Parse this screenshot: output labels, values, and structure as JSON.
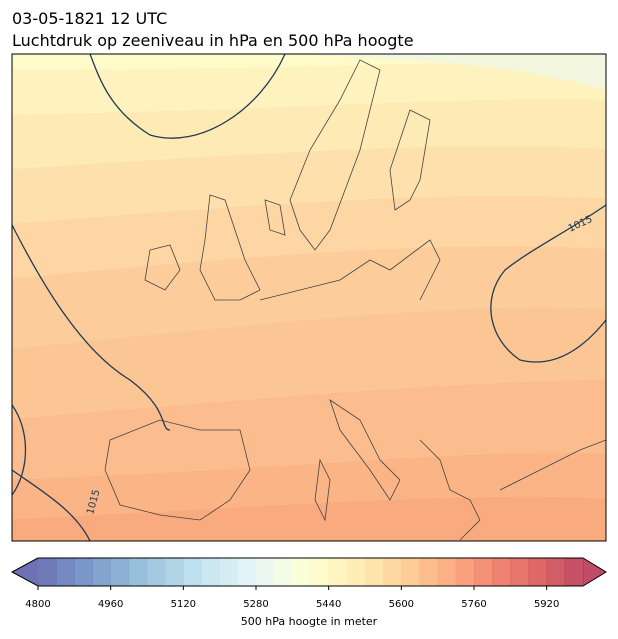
{
  "header": {
    "title": "03-05-1821 12 UTC",
    "subtitle": "Luchtdruk op zeeniveau in hPa en 500 hPa hoogte"
  },
  "map": {
    "contour_labels": [
      "1015",
      "1015"
    ]
  },
  "colorbar": {
    "label": "500 hPa hoogte in meter",
    "clim": [
      4800,
      6000
    ],
    "levels": [
      4800,
      4840,
      4880,
      4920,
      4960,
      5000,
      5040,
      5080,
      5120,
      5160,
      5200,
      5240,
      5280,
      5320,
      5360,
      5400,
      5440,
      5480,
      5520,
      5560,
      5600,
      5640,
      5680,
      5720,
      5760,
      5800,
      5840,
      5880,
      5920,
      5960,
      6000
    ],
    "ticks": [
      4800,
      4960,
      5120,
      5280,
      5440,
      5600,
      5760,
      5920
    ],
    "colormap": [
      "#313695",
      "#4575b4",
      "#74add1",
      "#abd9e9",
      "#e0f3f8",
      "#ffffbf",
      "#fee090",
      "#fdae61",
      "#f46d43",
      "#d73027",
      "#a50026"
    ],
    "opacity": 0.7
  }
}
